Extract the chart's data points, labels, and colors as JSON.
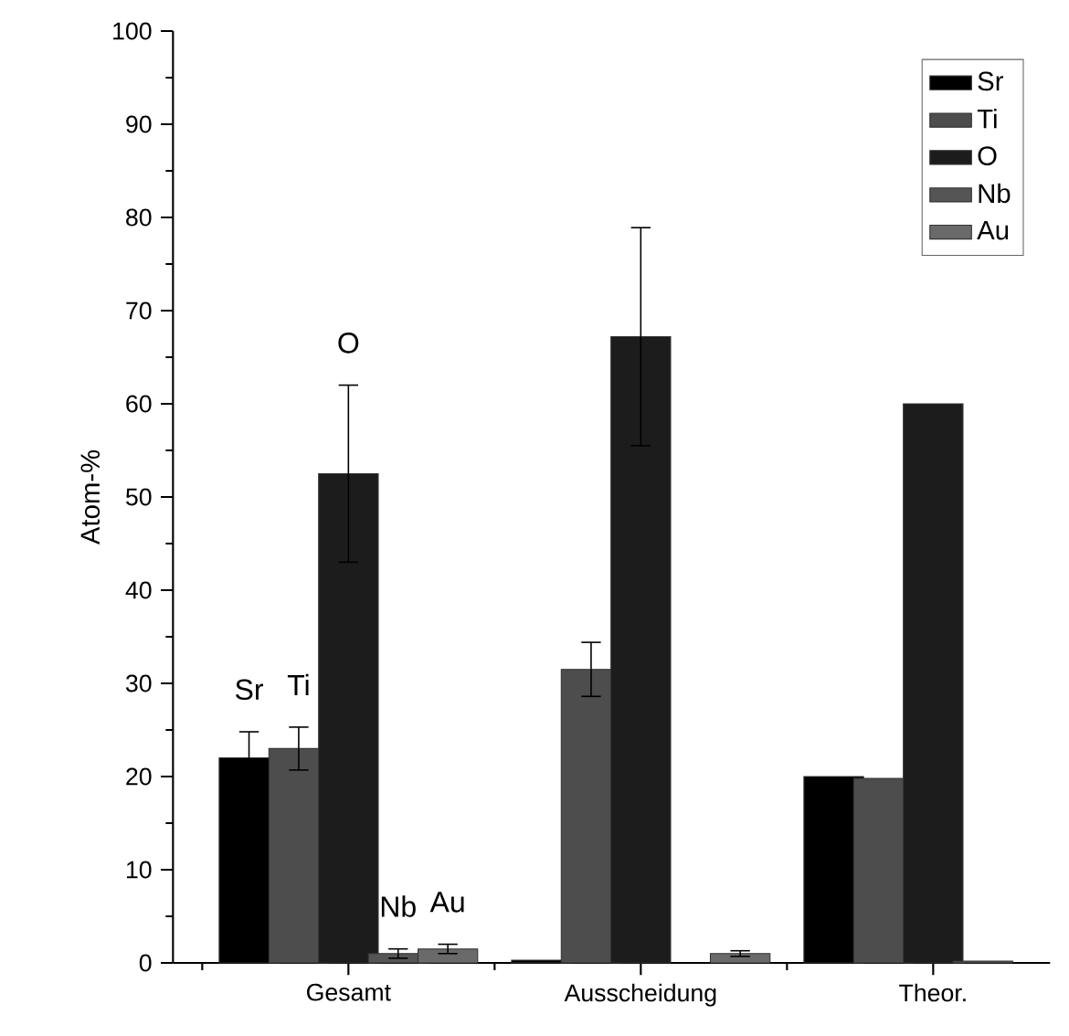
{
  "chart_data": {
    "type": "bar",
    "ylabel": "Atom-%",
    "categories": [
      "Gesamt",
      "Ausscheidung",
      "Theor."
    ],
    "series": [
      {
        "name": "Sr",
        "color": "#000000",
        "values": [
          22.0,
          0.3,
          20.0
        ],
        "errors": [
          2.8,
          null,
          null
        ]
      },
      {
        "name": "Ti",
        "color": "#4d4d4d",
        "values": [
          23.0,
          31.5,
          19.8
        ],
        "errors": [
          2.3,
          2.9,
          null
        ]
      },
      {
        "name": "O",
        "color": "#1c1c1c",
        "values": [
          52.5,
          67.2,
          60.0
        ],
        "errors": [
          9.5,
          11.7,
          null
        ]
      },
      {
        "name": "Nb",
        "color": "#555555",
        "values": [
          1.0,
          null,
          0.2
        ],
        "errors": [
          0.5,
          null,
          null
        ]
      },
      {
        "name": "Au",
        "color": "#6a6a6a",
        "values": [
          1.5,
          1.0,
          null
        ],
        "errors": [
          0.5,
          0.3,
          null
        ]
      }
    ],
    "annotations": [
      "Sr",
      "Ti",
      "O",
      "Nb",
      "Au"
    ],
    "ylim": [
      0,
      100
    ],
    "yticks": [
      0,
      10,
      20,
      30,
      40,
      50,
      60,
      70,
      80,
      90,
      100
    ],
    "legend": "top right",
    "grid": false
  }
}
